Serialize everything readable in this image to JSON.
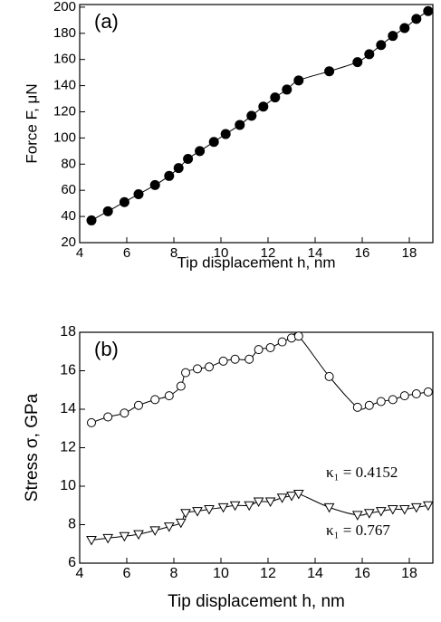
{
  "chart_data": [
    {
      "type": "line",
      "panel_label": "(a)",
      "xlabel": "Tip displacement h, nm",
      "ylabel": "Force F, μN",
      "xlim": [
        4,
        19
      ],
      "ylim": [
        20,
        202
      ],
      "xticks": [
        4,
        6,
        8,
        10,
        12,
        14,
        16,
        18
      ],
      "yticks": [
        20,
        40,
        60,
        80,
        100,
        120,
        140,
        160,
        180,
        200
      ],
      "x": [
        4.5,
        5.2,
        5.9,
        6.5,
        7.2,
        7.8,
        8.2,
        8.6,
        9.1,
        9.7,
        10.2,
        10.8,
        11.3,
        11.8,
        12.3,
        12.8,
        13.3,
        14.6,
        15.8,
        16.3,
        16.8,
        17.3,
        17.8,
        18.3,
        18.8
      ],
      "series": [
        {
          "color": "#000000",
          "marker": "filled-circle",
          "values": [
            37,
            44,
            51,
            57,
            64,
            71,
            77,
            84,
            90,
            97,
            103,
            110,
            117,
            124,
            131,
            137,
            144,
            151,
            158,
            164,
            171,
            178,
            184,
            191,
            197
          ]
        }
      ],
      "annotations": []
    },
    {
      "type": "line",
      "panel_label": "(b)",
      "xlabel": "Tip displacement h, nm",
      "ylabel": "Stress σ, GPa",
      "xlim": [
        4,
        19
      ],
      "ylim": [
        6,
        18
      ],
      "xticks": [
        4,
        6,
        8,
        10,
        12,
        14,
        16,
        18
      ],
      "yticks": [
        6,
        8,
        10,
        12,
        14,
        16,
        18
      ],
      "x": [
        4.5,
        5.2,
        5.9,
        6.5,
        7.2,
        7.8,
        8.3,
        8.5,
        9.0,
        9.5,
        10.1,
        10.6,
        11.2,
        11.6,
        12.1,
        12.6,
        13.0,
        13.3,
        14.6,
        15.8,
        16.3,
        16.8,
        17.3,
        17.8,
        18.3,
        18.8
      ],
      "series": [
        {
          "color": "#000000",
          "marker": "open-circle",
          "values": [
            13.3,
            13.6,
            13.8,
            14.2,
            14.5,
            14.7,
            15.2,
            15.9,
            16.1,
            16.2,
            16.5,
            16.6,
            16.6,
            17.1,
            17.2,
            17.5,
            17.7,
            17.8,
            15.7,
            14.1,
            14.2,
            14.4,
            14.5,
            14.7,
            14.8,
            14.9
          ]
        },
        {
          "color": "#000000",
          "marker": "open-triangle",
          "values": [
            7.2,
            7.3,
            7.4,
            7.5,
            7.7,
            7.9,
            8.1,
            8.6,
            8.7,
            8.8,
            8.9,
            9.0,
            9.0,
            9.2,
            9.2,
            9.4,
            9.5,
            9.6,
            8.9,
            8.5,
            8.6,
            8.7,
            8.8,
            8.8,
            8.9,
            9.0
          ]
        }
      ],
      "annotations": [
        "κ₁ = 0.4152",
        "κ₁ = 0.767"
      ]
    }
  ]
}
